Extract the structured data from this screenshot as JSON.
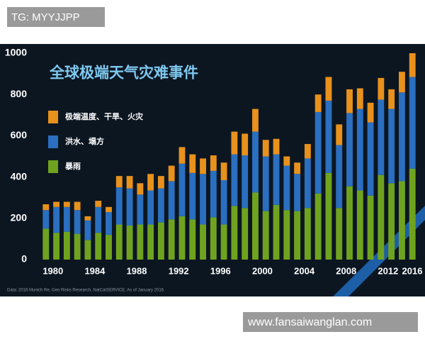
{
  "header": {
    "tag": "TG: MYYJJPP"
  },
  "footer": {
    "url": "www.fansaiwanglan.com"
  },
  "chart_data": {
    "type": "stacked-bar",
    "title": "全球极端天气灾难事件",
    "source": "Data: 2016 Munich Re, Geo Risks Research, NatCatSERVICE. As of January 2016.",
    "x": [
      1980,
      1981,
      1982,
      1983,
      1984,
      1985,
      1986,
      1987,
      1988,
      1989,
      1990,
      1991,
      1992,
      1993,
      1994,
      1995,
      1996,
      1997,
      1998,
      1999,
      2000,
      2001,
      2002,
      2003,
      2004,
      2005,
      2006,
      2007,
      2008,
      2009,
      2010,
      2011,
      2012,
      2013,
      2014,
      2015
    ],
    "xlim": [
      1979,
      2016
    ],
    "xticks": [
      1980,
      1984,
      1988,
      1992,
      1996,
      2000,
      2004,
      2008,
      2012,
      2016
    ],
    "ylim": [
      0,
      1000
    ],
    "yticks": [
      0,
      200,
      400,
      600,
      800,
      1000
    ],
    "legend": "upper-left",
    "series": [
      {
        "name": "暴雨",
        "color": "#6fa31f",
        "values": [
          150,
          130,
          135,
          125,
          95,
          130,
          120,
          170,
          165,
          170,
          170,
          180,
          195,
          210,
          195,
          170,
          205,
          170,
          260,
          250,
          325,
          235,
          265,
          240,
          235,
          250,
          320,
          420,
          250,
          355,
          335,
          310,
          410,
          370,
          380,
          440
        ]
      },
      {
        "name": "洪水、塌方",
        "color": "#2a6fc0",
        "values": [
          90,
          125,
          120,
          115,
          95,
          125,
          110,
          180,
          180,
          145,
          165,
          165,
          185,
          255,
          225,
          245,
          225,
          215,
          250,
          255,
          295,
          265,
          245,
          215,
          180,
          240,
          395,
          350,
          305,
          355,
          395,
          355,
          365,
          360,
          430,
          445
        ]
      },
      {
        "name": "极端温度、干旱、火灾",
        "color": "#e8911c",
        "values": [
          28,
          25,
          25,
          40,
          20,
          30,
          25,
          55,
          60,
          55,
          80,
          60,
          75,
          80,
          90,
          75,
          75,
          85,
          110,
          105,
          110,
          80,
          75,
          45,
          55,
          70,
          85,
          115,
          100,
          115,
          100,
          95,
          105,
          95,
          100,
          115
        ]
      }
    ]
  }
}
